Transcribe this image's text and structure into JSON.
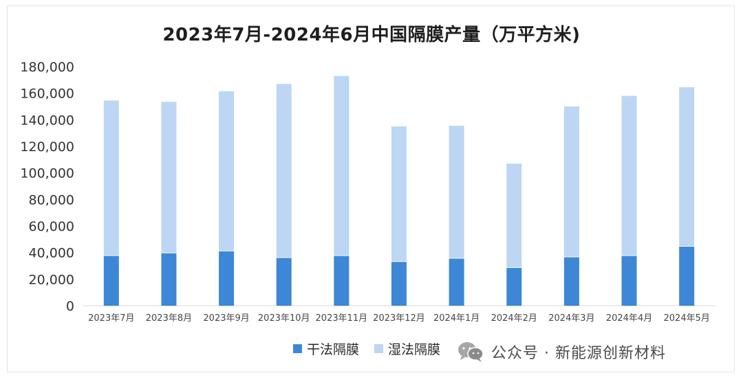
{
  "chart_data": {
    "type": "bar",
    "stacked": true,
    "title": "2023年7月-2024年6月中国隔膜产量（万平方米)",
    "categories": [
      "2023年7月",
      "2023年8月",
      "2023年9月",
      "2023年10月",
      "2023年11月",
      "2023年12月",
      "2024年1月",
      "2024年2月",
      "2024年3月",
      "2024年4月",
      "2024年5月"
    ],
    "series": [
      {
        "name": "干法隔膜",
        "color": "#3d87d6",
        "values": [
          37500,
          39500,
          41000,
          36000,
          37500,
          33000,
          35500,
          28500,
          36500,
          37500,
          44500
        ]
      },
      {
        "name": "湿法隔膜",
        "color": "#bcd6f4",
        "values": [
          117000,
          114000,
          120500,
          131000,
          135500,
          102000,
          100000,
          78500,
          113500,
          120500,
          120000
        ]
      }
    ],
    "ylim": [
      0,
      180000
    ],
    "yticks": [
      "0",
      "20,000",
      "40,000",
      "60,000",
      "80,000",
      "100,000",
      "120,000",
      "140,000",
      "160,000",
      "180,000"
    ],
    "ytick_values": [
      0,
      20000,
      40000,
      60000,
      80000,
      100000,
      120000,
      140000,
      160000,
      180000
    ],
    "legend_position": "bottom",
    "grid": false
  },
  "watermark": {
    "text": "公众号 · 新能源创新材料",
    "icon": "wechat-icon"
  }
}
